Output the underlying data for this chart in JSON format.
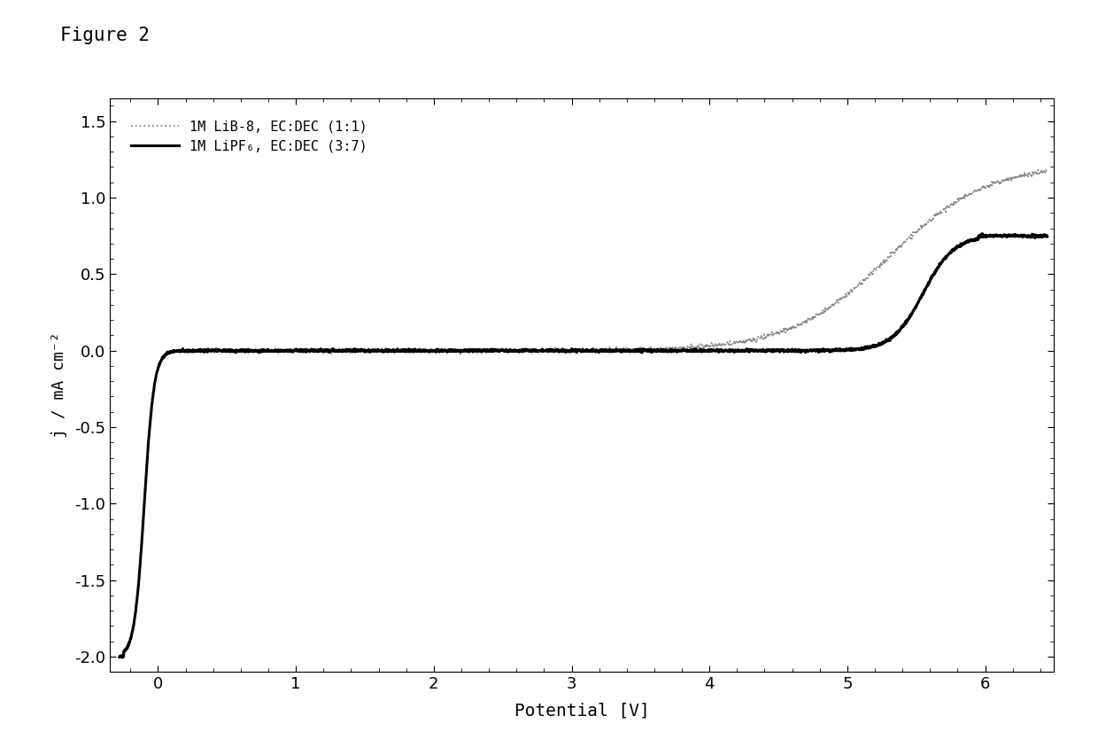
{
  "title": "Figure 2",
  "xlabel": "Potential [V]",
  "ylabel": "j / mA cm⁻²",
  "xlim": [
    -0.35,
    6.5
  ],
  "ylim": [
    -2.1,
    1.65
  ],
  "xticks": [
    0,
    1,
    2,
    3,
    4,
    5,
    6
  ],
  "yticks": [
    -2.0,
    -1.5,
    -1.0,
    -0.5,
    0.0,
    0.5,
    1.0,
    1.5
  ],
  "legend1": "1M LiB-8, EC:DEC (1:1)",
  "legend2": "1M LiPF₆, EC:DEC (3:7)",
  "bg_color": "#ffffff",
  "line_color_solid": "#000000",
  "line_color_dotted": "#888888"
}
